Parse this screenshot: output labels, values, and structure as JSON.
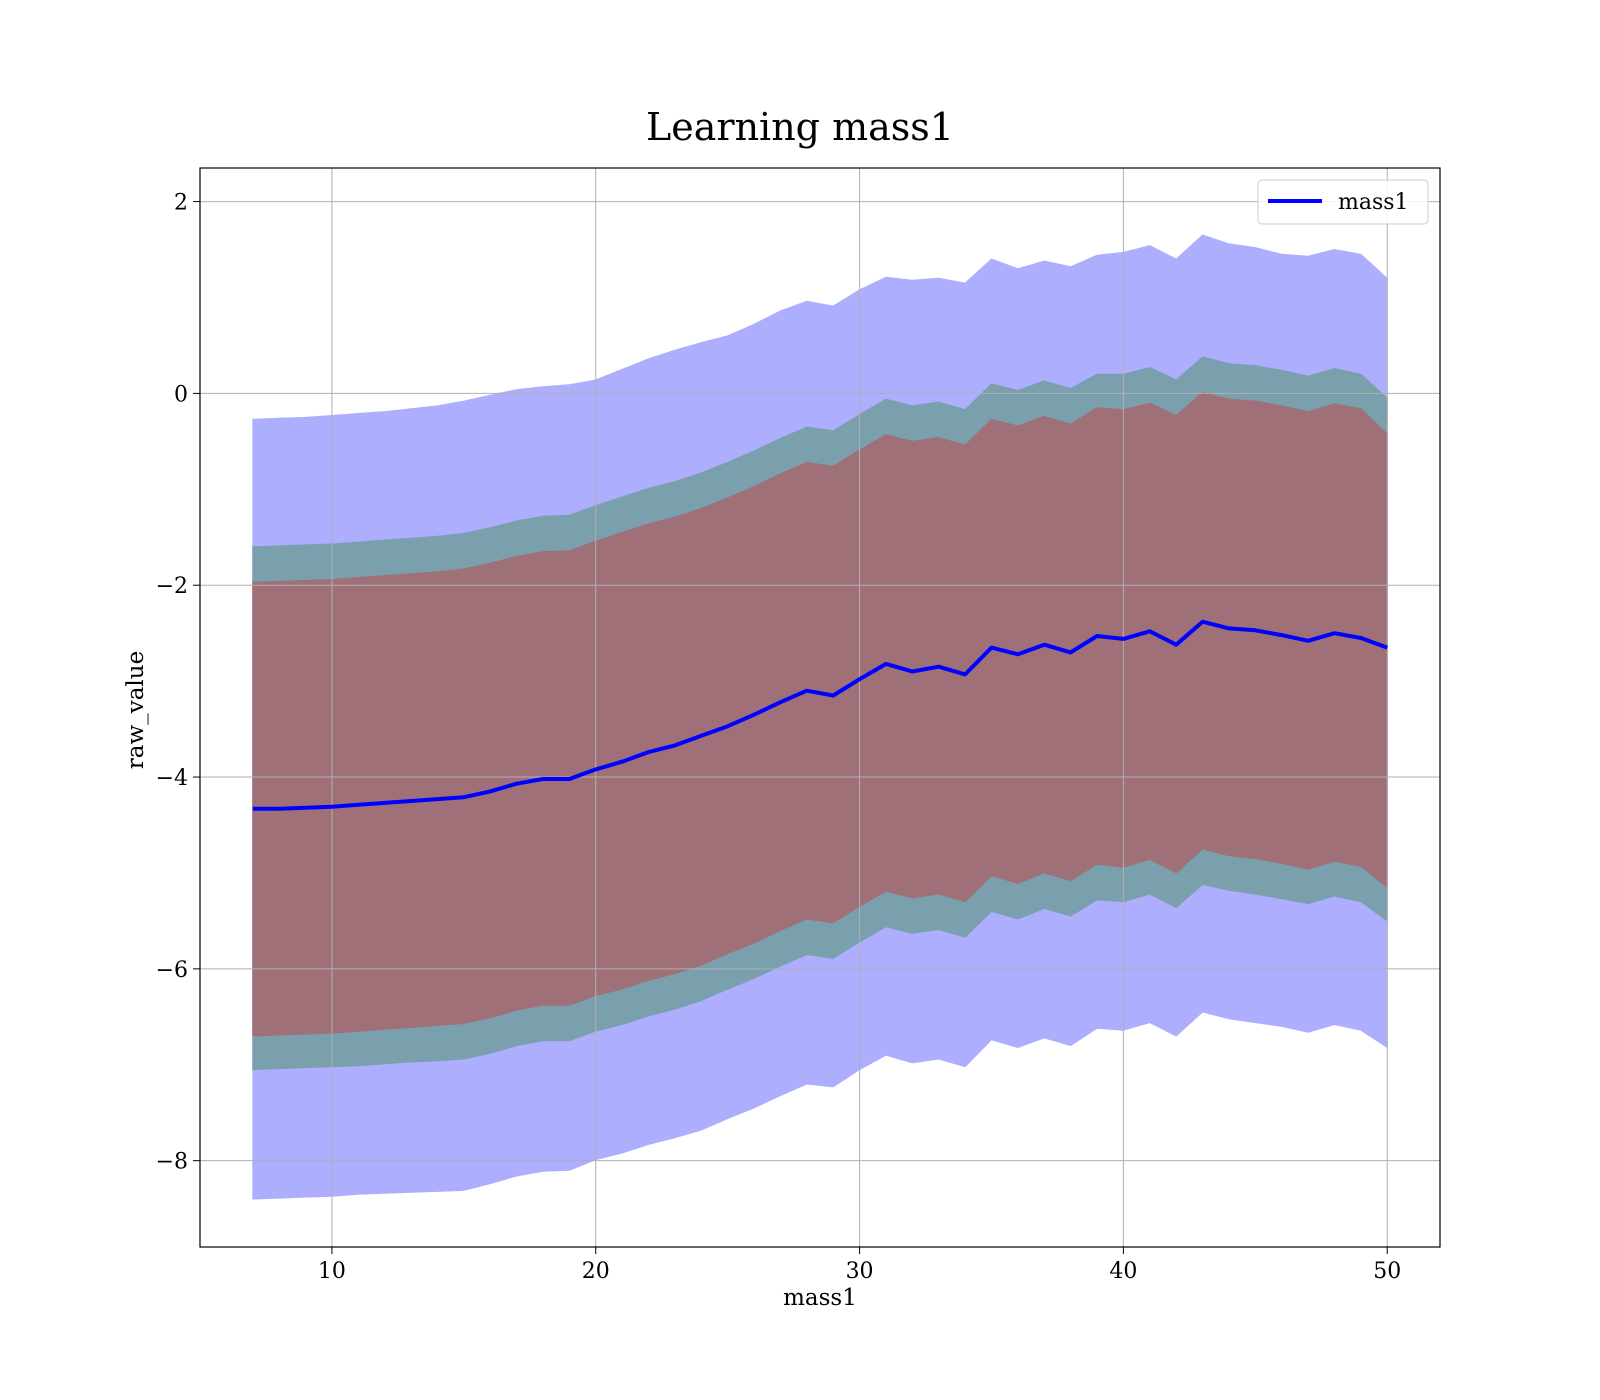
{
  "chart_data": {
    "type": "line",
    "title": "Learning mass1",
    "xlabel": "mass1",
    "ylabel": "raw_value",
    "xlim": [
      5,
      52
    ],
    "ylim": [
      -8.9,
      2.35
    ],
    "xticks": [
      10,
      20,
      30,
      40,
      50
    ],
    "yticks": [
      2,
      0,
      -2,
      -4,
      -6,
      -8
    ],
    "xtick_labels": [
      "10",
      "20",
      "30",
      "40",
      "50"
    ],
    "ytick_labels": [
      "2",
      "0",
      "−2",
      "−4",
      "−6",
      "−8"
    ],
    "grid": true,
    "legend": {
      "position": "top-right",
      "entries": [
        "mass1"
      ]
    },
    "series": [
      {
        "name": "mass1",
        "color": "#0000ff",
        "x": [
          7,
          8,
          9,
          10,
          11,
          12,
          13,
          14,
          15,
          16,
          17,
          18,
          19,
          20,
          21,
          22,
          23,
          24,
          25,
          26,
          27,
          28,
          29,
          30,
          31,
          32,
          33,
          34,
          35,
          36,
          37,
          38,
          39,
          40,
          41,
          42,
          43,
          44,
          45,
          46,
          47,
          48,
          49,
          50
        ],
        "y": [
          -4.33,
          -4.33,
          -4.32,
          -4.31,
          -4.29,
          -4.27,
          -4.25,
          -4.23,
          -4.21,
          -4.15,
          -4.07,
          -4.02,
          -4.02,
          -3.92,
          -3.84,
          -3.74,
          -3.67,
          -3.57,
          -3.47,
          -3.35,
          -3.22,
          -3.1,
          -3.15,
          -2.98,
          -2.82,
          -2.9,
          -2.85,
          -2.93,
          -2.65,
          -2.72,
          -2.62,
          -2.7,
          -2.53,
          -2.56,
          -2.48,
          -2.62,
          -2.38,
          -2.45,
          -2.47,
          -2.52,
          -2.58,
          -2.5,
          -2.55,
          -2.65
        ]
      }
    ],
    "bands": [
      {
        "name": "outer",
        "color": "#aeaeff",
        "upper": [
          -0.27,
          -0.26,
          -0.25,
          -0.23,
          -0.21,
          -0.19,
          -0.16,
          -0.13,
          -0.08,
          -0.02,
          0.04,
          0.07,
          0.09,
          0.14,
          0.25,
          0.36,
          0.45,
          0.53,
          0.6,
          0.72,
          0.86,
          0.96,
          0.91,
          1.08,
          1.21,
          1.18,
          1.2,
          1.15,
          1.4,
          1.3,
          1.38,
          1.32,
          1.44,
          1.47,
          1.54,
          1.4,
          1.65,
          1.56,
          1.52,
          1.45,
          1.43,
          1.5,
          1.45,
          1.2
        ],
        "lower": [
          -8.4,
          -8.39,
          -8.38,
          -8.37,
          -8.35,
          -8.34,
          -8.33,
          -8.32,
          -8.31,
          -8.24,
          -8.16,
          -8.11,
          -8.1,
          -7.99,
          -7.92,
          -7.83,
          -7.76,
          -7.68,
          -7.56,
          -7.45,
          -7.32,
          -7.2,
          -7.23,
          -7.05,
          -6.9,
          -6.98,
          -6.94,
          -7.02,
          -6.74,
          -6.82,
          -6.72,
          -6.8,
          -6.62,
          -6.64,
          -6.56,
          -6.7,
          -6.45,
          -6.52,
          -6.56,
          -6.6,
          -6.66,
          -6.58,
          -6.64,
          -6.82
        ]
      },
      {
        "name": "middle",
        "color": "#7aa0ae",
        "upper": [
          -1.6,
          -1.59,
          -1.58,
          -1.57,
          -1.55,
          -1.53,
          -1.51,
          -1.49,
          -1.46,
          -1.4,
          -1.33,
          -1.28,
          -1.27,
          -1.17,
          -1.08,
          -0.99,
          -0.92,
          -0.83,
          -0.72,
          -0.6,
          -0.47,
          -0.35,
          -0.39,
          -0.22,
          -0.06,
          -0.13,
          -0.09,
          -0.17,
          0.1,
          0.03,
          0.13,
          0.05,
          0.2,
          0.2,
          0.27,
          0.14,
          0.38,
          0.31,
          0.29,
          0.24,
          0.18,
          0.26,
          0.2,
          -0.05
        ],
        "lower": [
          -7.05,
          -7.04,
          -7.03,
          -7.02,
          -7.01,
          -6.99,
          -6.97,
          -6.96,
          -6.94,
          -6.88,
          -6.8,
          -6.75,
          -6.75,
          -6.65,
          -6.58,
          -6.49,
          -6.42,
          -6.33,
          -6.21,
          -6.1,
          -5.97,
          -5.85,
          -5.89,
          -5.72,
          -5.56,
          -5.63,
          -5.59,
          -5.67,
          -5.4,
          -5.48,
          -5.37,
          -5.45,
          -5.28,
          -5.3,
          -5.22,
          -5.36,
          -5.12,
          -5.18,
          -5.22,
          -5.27,
          -5.32,
          -5.24,
          -5.3,
          -5.5
        ]
      },
      {
        "name": "inner",
        "color": "#a07079",
        "upper": [
          -1.97,
          -1.96,
          -1.95,
          -1.94,
          -1.92,
          -1.9,
          -1.88,
          -1.86,
          -1.83,
          -1.77,
          -1.7,
          -1.65,
          -1.64,
          -1.54,
          -1.45,
          -1.36,
          -1.29,
          -1.2,
          -1.09,
          -0.97,
          -0.84,
          -0.72,
          -0.76,
          -0.59,
          -0.43,
          -0.5,
          -0.46,
          -0.54,
          -0.27,
          -0.34,
          -0.24,
          -0.32,
          -0.15,
          -0.17,
          -0.1,
          -0.23,
          0.01,
          -0.06,
          -0.08,
          -0.13,
          -0.19,
          -0.11,
          -0.16,
          -0.42
        ],
        "lower": [
          -6.7,
          -6.69,
          -6.68,
          -6.67,
          -6.65,
          -6.63,
          -6.61,
          -6.59,
          -6.57,
          -6.51,
          -6.43,
          -6.38,
          -6.38,
          -6.28,
          -6.21,
          -6.12,
          -6.05,
          -5.96,
          -5.84,
          -5.73,
          -5.6,
          -5.48,
          -5.52,
          -5.35,
          -5.19,
          -5.26,
          -5.22,
          -5.3,
          -5.03,
          -5.11,
          -5.0,
          -5.08,
          -4.91,
          -4.94,
          -4.86,
          -5.0,
          -4.75,
          -4.82,
          -4.85,
          -4.9,
          -4.96,
          -4.88,
          -4.93,
          -5.15
        ]
      }
    ]
  }
}
